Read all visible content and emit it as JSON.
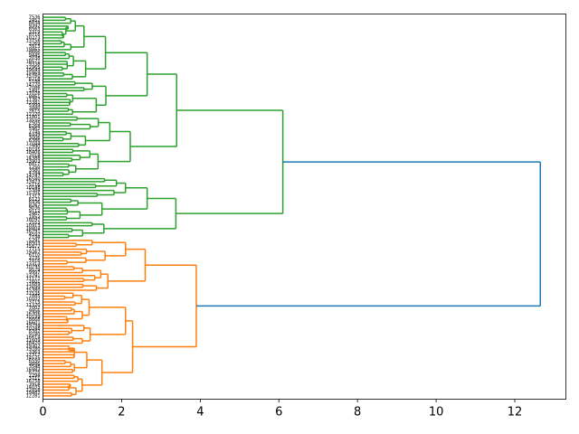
{
  "chart_data": {
    "type": "dendrogram",
    "orientation": "left",
    "title": "",
    "xlabel": "",
    "ylabel": "",
    "xlim": [
      0,
      13.3
    ],
    "x_ticks": [
      0,
      2,
      4,
      6,
      8,
      10,
      12
    ],
    "x_tick_labels": [
      "0",
      "2",
      "4",
      "6",
      "8",
      "10",
      "12"
    ],
    "leaf_count": 130,
    "colors": {
      "cluster_green": "#2ca02c",
      "cluster_orange": "#ff7f0e",
      "link_above_threshold": "#1f77b4",
      "axis": "#000000"
    },
    "merge_heights": {
      "root": 12.65,
      "green_main": 6.1,
      "green_upper": 3.4,
      "green_lower": 3.38,
      "green_upper_a": 2.65,
      "green_upper_b": 2.22,
      "green_lower_a": 2.65,
      "orange_main": 3.9,
      "orange_a": 2.6,
      "orange_b": 2.28
    },
    "top_leaf_labels": [
      "7536",
      "2452",
      "8834",
      "9392",
      "8563",
      "3319",
      "8716",
      "10273"
    ],
    "bottom_leaf_labels": [
      "3918",
      "14035",
      "12858",
      "19482",
      "12281"
    ]
  }
}
